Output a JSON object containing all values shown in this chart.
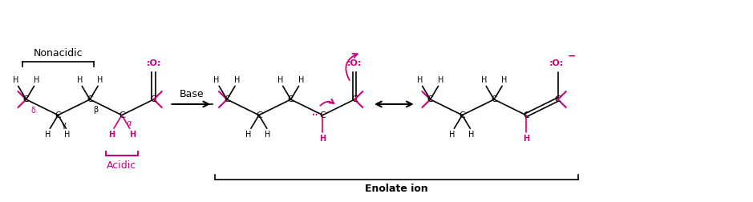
{
  "bg_color": "#ffffff",
  "black": "#000000",
  "magenta": "#cc007a",
  "figsize": [
    9.39,
    2.52
  ],
  "dpi": 100,
  "nonacidic_label": "Nonacidic",
  "acidic_label": "Acidic",
  "base_label": "Base",
  "enolate_label": "Enolate ion",
  "alpha_label": "α",
  "beta_label": "β",
  "gamma_label": "γ",
  "delta_label": "δ"
}
